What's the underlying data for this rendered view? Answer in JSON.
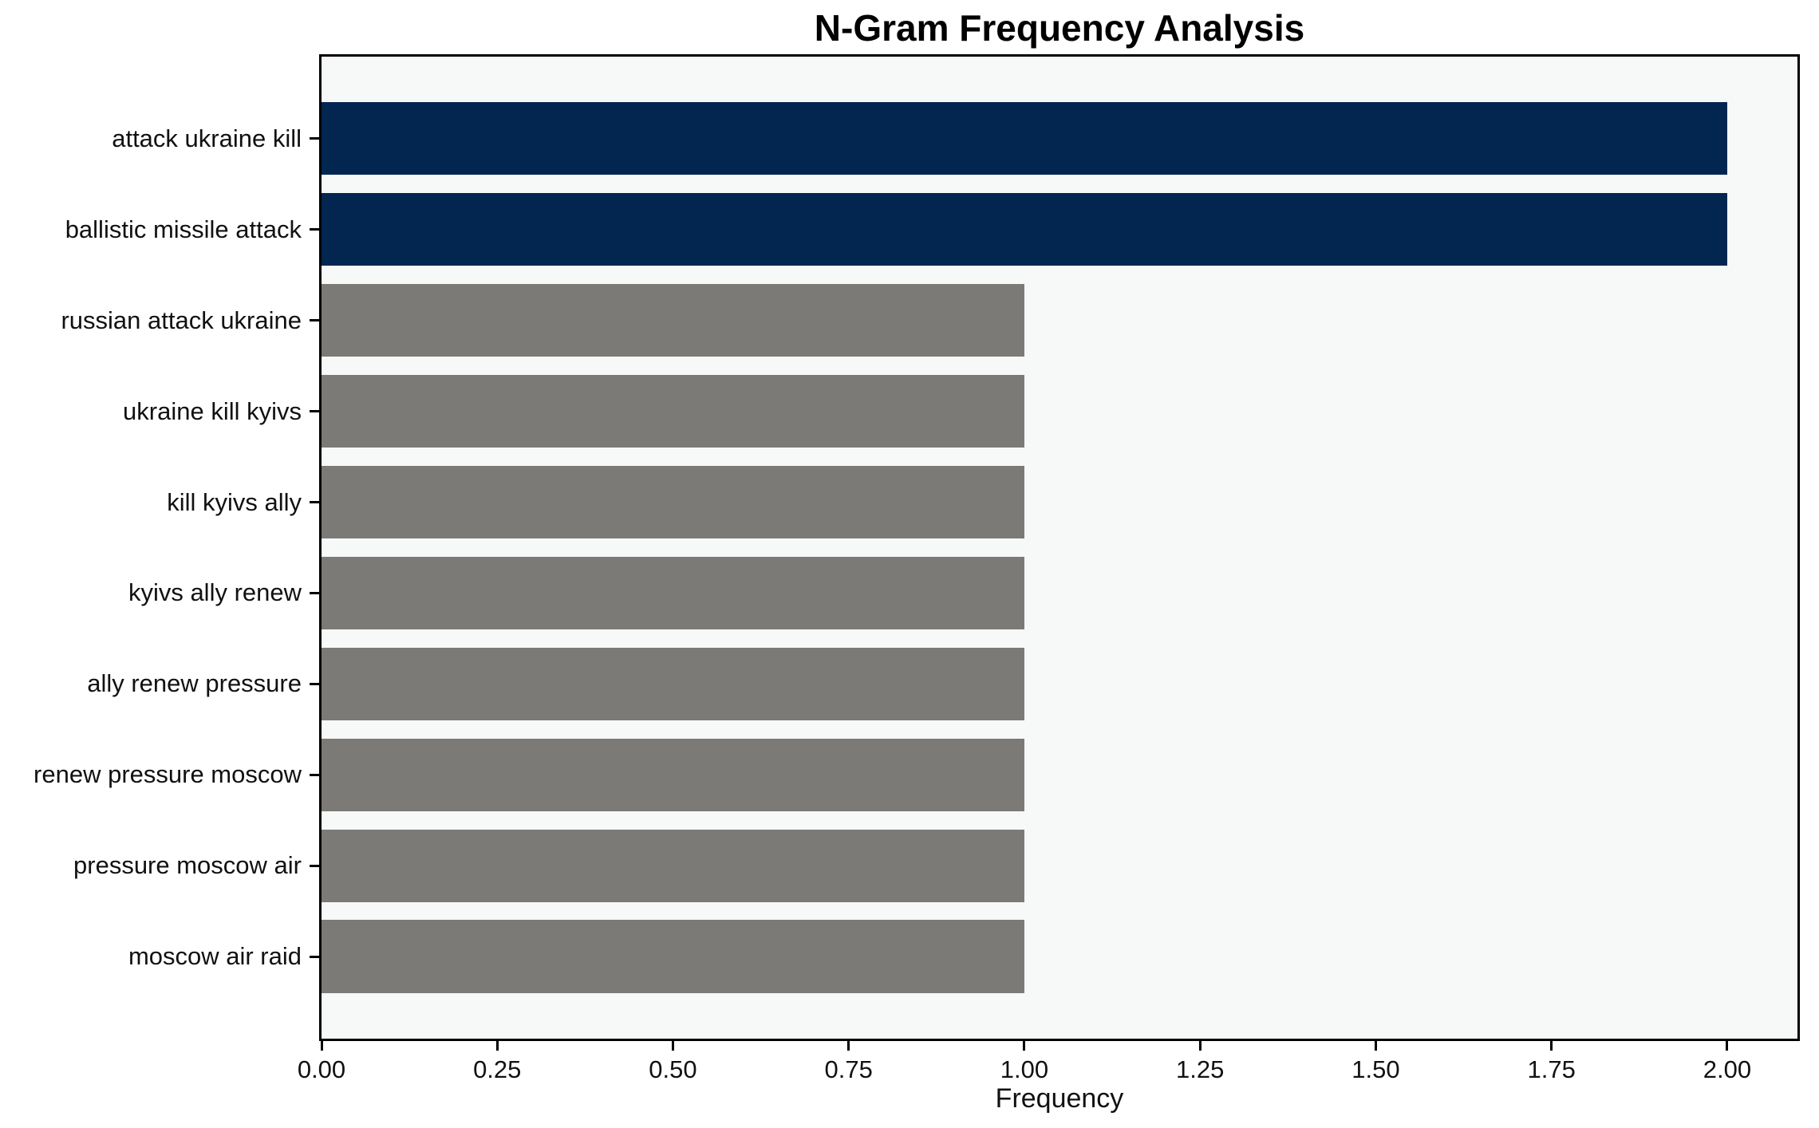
{
  "chart_data": {
    "type": "bar",
    "orientation": "horizontal",
    "title": "N-Gram Frequency Analysis",
    "xlabel": "Frequency",
    "ylabel": "",
    "categories": [
      "attack ukraine kill",
      "ballistic missile attack",
      "russian attack ukraine",
      "ukraine kill kyivs",
      "kill kyivs ally",
      "kyivs ally renew",
      "ally renew pressure",
      "renew pressure moscow",
      "pressure moscow air",
      "moscow air raid"
    ],
    "values": [
      2,
      2,
      1,
      1,
      1,
      1,
      1,
      1,
      1,
      1
    ],
    "bar_colors": [
      "#022650",
      "#022650",
      "#7b7a76",
      "#7b7a76",
      "#7b7a76",
      "#7b7a76",
      "#7b7a76",
      "#7b7a76",
      "#7b7a76",
      "#7b7a76"
    ],
    "xticks": [
      0.0,
      0.25,
      0.5,
      0.75,
      1.0,
      1.25,
      1.5,
      1.75,
      2.0
    ],
    "xtick_labels": [
      "0.00",
      "0.25",
      "0.50",
      "0.75",
      "1.00",
      "1.25",
      "1.50",
      "1.75",
      "2.00"
    ],
    "xlim": [
      0,
      2.1
    ],
    "grid": false,
    "legend": "none",
    "colors": {
      "highlight": "#022650",
      "default": "#7b7a76",
      "plot_background": "#f7f8f8",
      "figure_background": "#ffffff",
      "spine": "#000000",
      "text": "#111111"
    }
  }
}
